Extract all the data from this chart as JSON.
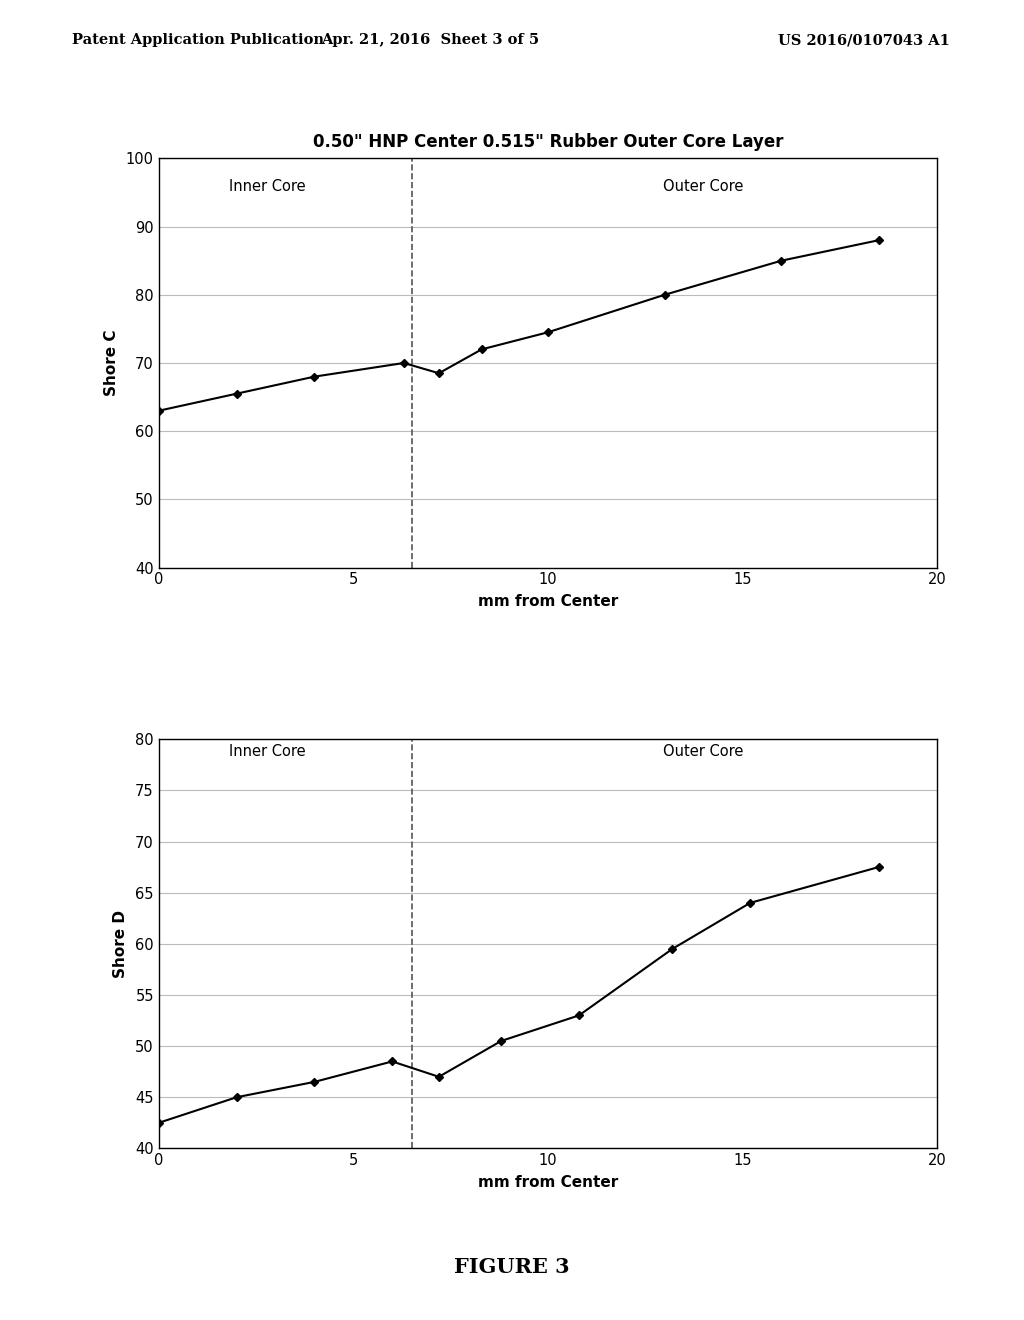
{
  "title": "0.50\" HNP Center 0.515\" Rubber Outer Core Layer",
  "header_left": "Patent Application Publication",
  "header_center": "Apr. 21, 2016  Sheet 3 of 5",
  "header_right": "US 2016/0107043 A1",
  "figure_label": "FIGURE 3",
  "chart1": {
    "ylabel": "Shore C",
    "xlabel": "mm from Center",
    "xlim": [
      0,
      20
    ],
    "ylim": [
      40,
      100
    ],
    "yticks": [
      40,
      50,
      60,
      70,
      80,
      90,
      100
    ],
    "xticks": [
      0,
      5,
      10,
      15,
      20
    ],
    "x": [
      0,
      2,
      4,
      6.3,
      7.2,
      8.3,
      10,
      13,
      16,
      18.5
    ],
    "y": [
      63,
      65.5,
      68,
      70,
      68.5,
      72,
      74.5,
      80,
      85,
      88
    ],
    "vline_x": 6.5,
    "inner_core_label": "Inner Core",
    "inner_core_x": 2.8,
    "inner_core_y": 97,
    "outer_core_label": "Outer Core",
    "outer_core_x": 14.0,
    "outer_core_y": 97
  },
  "chart2": {
    "ylabel": "Shore D",
    "xlabel": "mm from Center",
    "xlim": [
      0,
      20
    ],
    "ylim": [
      40,
      80
    ],
    "yticks": [
      40,
      45,
      50,
      55,
      60,
      65,
      70,
      75,
      80
    ],
    "xticks": [
      0,
      5,
      10,
      15,
      20
    ],
    "x": [
      0,
      2,
      4,
      6,
      7.2,
      8.8,
      10.8,
      13.2,
      15.2,
      18.5
    ],
    "y": [
      42.5,
      45,
      46.5,
      48.5,
      47,
      50.5,
      53,
      59.5,
      64,
      67.5
    ],
    "vline_x": 6.5,
    "inner_core_label": "Inner Core",
    "inner_core_x": 2.8,
    "inner_core_y": 79.5,
    "outer_core_label": "Outer Core",
    "outer_core_x": 14.0,
    "outer_core_y": 79.5
  },
  "line_color": "#000000",
  "marker": "D",
  "marker_size": 4,
  "line_width": 1.5,
  "dashed_line_color": "#555555",
  "background_color": "#ffffff",
  "grid_color": "#bbbbbb"
}
